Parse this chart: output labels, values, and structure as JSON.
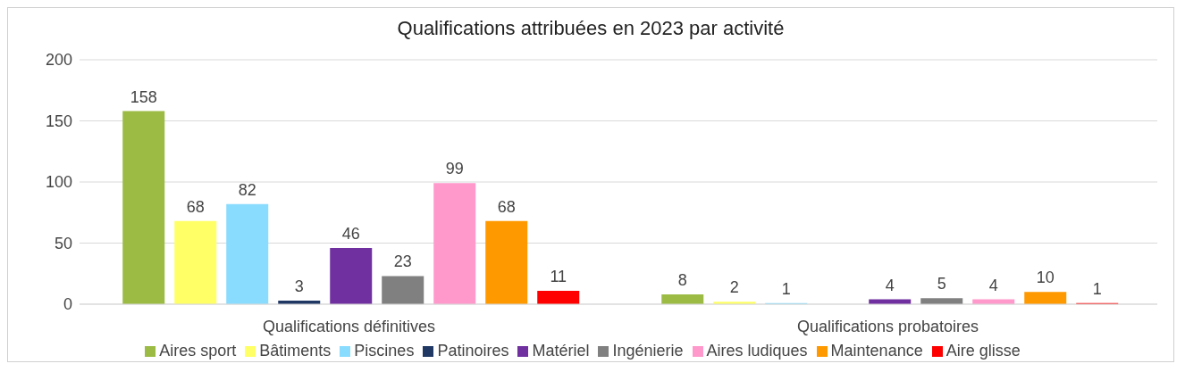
{
  "chart_data": {
    "type": "bar",
    "title": "Qualifications attribuées en 2023 par activité",
    "categories": [
      "Qualifications définitives",
      "Qualifications probatoires"
    ],
    "series": [
      {
        "name": "Aires sport",
        "color": "#9bbb45",
        "values": [
          158,
          8
        ]
      },
      {
        "name": "Bâtiments",
        "color": "#ffff66",
        "values": [
          68,
          2
        ]
      },
      {
        "name": "Piscines",
        "color": "#8adcff",
        "values": [
          82,
          1
        ]
      },
      {
        "name": "Patinoires",
        "color": "#1f3864",
        "values": [
          3,
          null
        ]
      },
      {
        "name": "Matériel",
        "color": "#7030a0",
        "values": [
          46,
          4
        ]
      },
      {
        "name": "Ingénierie",
        "color": "#808080",
        "values": [
          23,
          5
        ]
      },
      {
        "name": "Aires ludiques",
        "color": "#ff99cc",
        "values": [
          99,
          4
        ]
      },
      {
        "name": "Maintenance",
        "color": "#ff9900",
        "values": [
          68,
          10
        ]
      },
      {
        "name": "Aire glisse",
        "color": "#ff0000",
        "values": [
          11,
          1
        ]
      }
    ],
    "ylim": [
      0,
      200
    ],
    "yticks": [
      0,
      50,
      100,
      150,
      200
    ],
    "grid": "y",
    "legend": "bottom",
    "data_labels": true
  }
}
